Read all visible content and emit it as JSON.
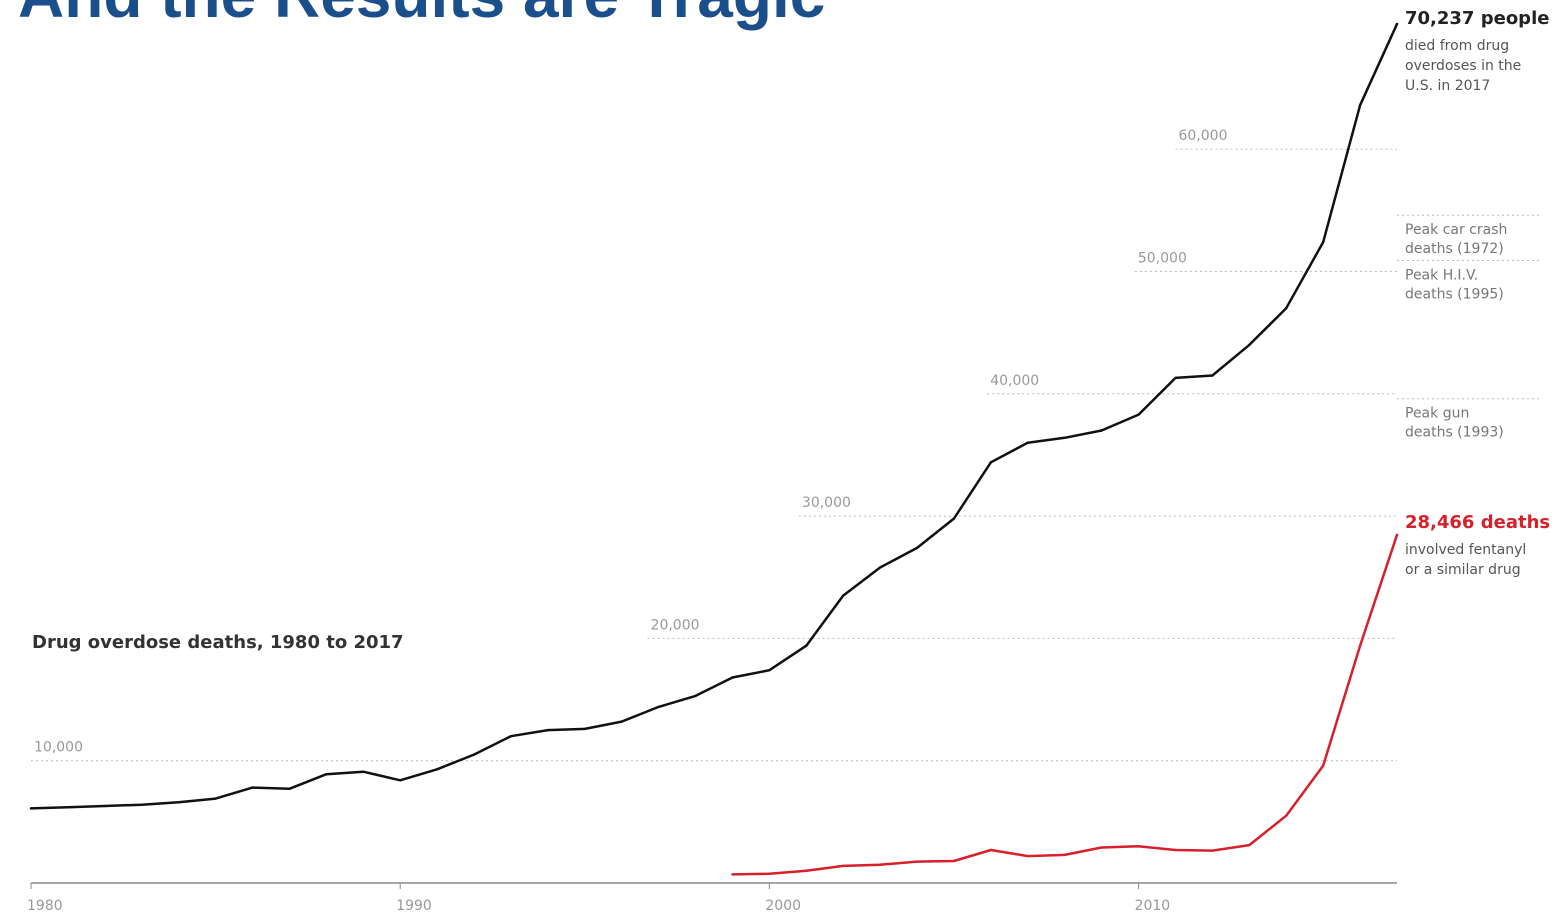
{
  "slide": {
    "title": "And the Results are Tragic"
  },
  "chart_data": {
    "type": "line",
    "title": "Drug overdose deaths, 1980 to 2017",
    "xlabel": "",
    "ylabel": "",
    "xlim": [
      1980,
      2017
    ],
    "ylim": [
      0,
      70237
    ],
    "grid": true,
    "x_ticks": [
      {
        "value": 1980,
        "label": "1980"
      },
      {
        "value": 1990,
        "label": "1990"
      },
      {
        "value": 2000,
        "label": "2000"
      },
      {
        "value": 2010,
        "label": "2010"
      }
    ],
    "y_gridlines": [
      {
        "value": 10000,
        "label": "10,000",
        "label_year": 1980
      },
      {
        "value": 20000,
        "label": "20,000",
        "label_year": 1996.7
      },
      {
        "value": 30000,
        "label": "30,000",
        "label_year": 2000.8
      },
      {
        "value": 40000,
        "label": "40,000",
        "label_year": 2005.9
      },
      {
        "value": 50000,
        "label": "50,000",
        "label_year": 2009.9
      },
      {
        "value": 60000,
        "label": "60,000",
        "label_year": 2011.0
      }
    ],
    "reference_lines": [
      {
        "value": 54600,
        "lines": [
          "Peak car crash",
          "deaths (1972)"
        ]
      },
      {
        "value": 50900,
        "lines": [
          "Peak H.I.V.",
          "deaths (1995)"
        ]
      },
      {
        "value": 39600,
        "lines": [
          "Peak gun",
          "deaths (1993)"
        ]
      }
    ],
    "series": [
      {
        "color": "#111111",
        "x": [
          1980,
          1981,
          1982,
          1983,
          1984,
          1985,
          1986,
          1987,
          1988,
          1989,
          1990,
          1991,
          1992,
          1993,
          1994,
          1995,
          1996,
          1997,
          1998,
          1999,
          2000,
          2001,
          2002,
          2003,
          2004,
          2005,
          2006,
          2007,
          2008,
          2009,
          2010,
          2011,
          2012,
          2013,
          2014,
          2015,
          2016,
          2017
        ],
        "y": [
          6100,
          6200,
          6300,
          6400,
          6600,
          6900,
          7800,
          7700,
          8900,
          9100,
          8400,
          9300,
          10500,
          12000,
          12500,
          12600,
          13200,
          14400,
          15300,
          16800,
          17400,
          19400,
          23500,
          25800,
          27400,
          29800,
          34400,
          36000,
          36400,
          37000,
          38300,
          41300,
          41500,
          44000,
          47000,
          52400,
          63600,
          70237
        ],
        "callout": {
          "value": "70,237 people",
          "lines": [
            "died from drug",
            "overdoses in the",
            "U.S. in 2017"
          ]
        }
      },
      {
        "color": "#d6202c",
        "x": [
          1999,
          2000,
          2001,
          2002,
          2003,
          2004,
          2005,
          2006,
          2007,
          2008,
          2009,
          2010,
          2011,
          2012,
          2013,
          2014,
          2015,
          2016,
          2017
        ],
        "y": [
          700,
          750,
          1000,
          1400,
          1500,
          1750,
          1800,
          2700,
          2200,
          2300,
          2900,
          3000,
          2700,
          2650,
          3100,
          5500,
          9600,
          19400,
          28466
        ],
        "callout": {
          "value": "28,466 deaths",
          "lines": [
            "involved fentanyl",
            "or a similar drug"
          ]
        }
      }
    ]
  }
}
